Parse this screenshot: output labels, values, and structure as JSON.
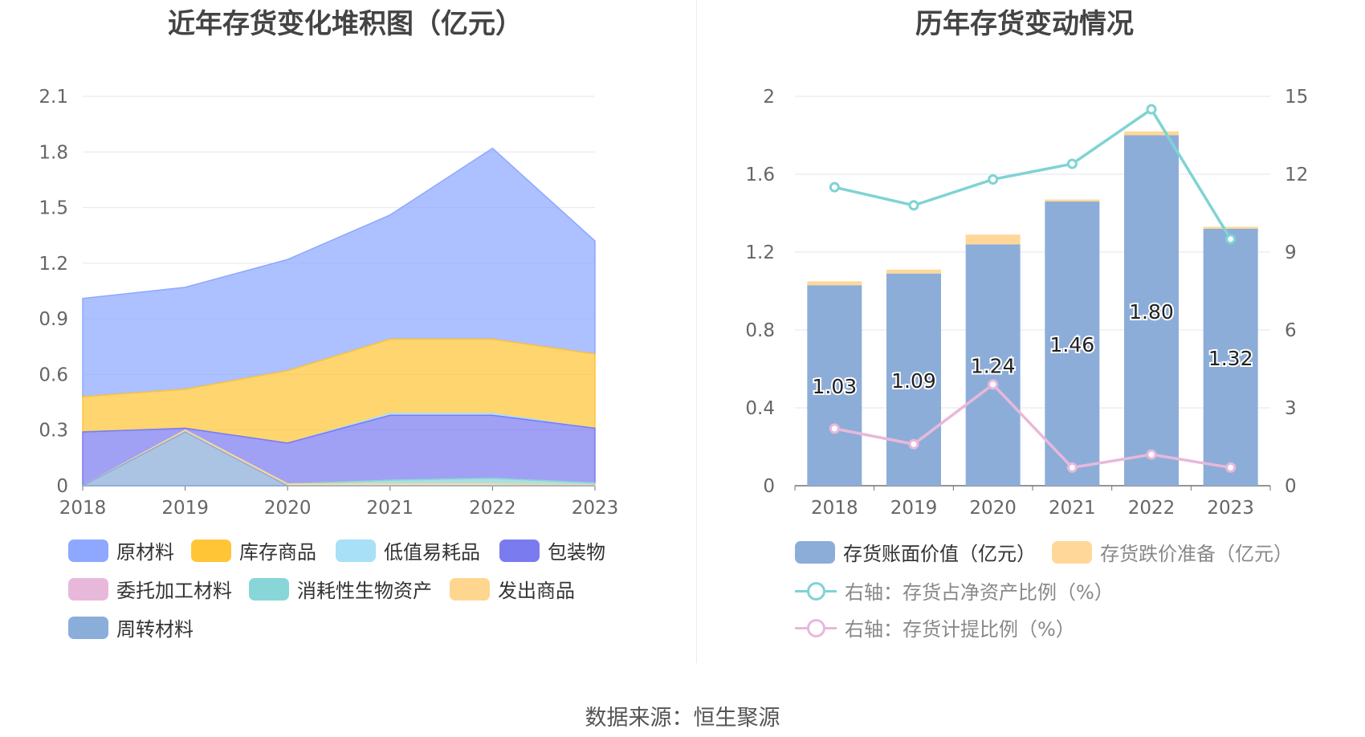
{
  "left_title": "近年存货变化堆积图（亿元）",
  "right_title": "历年存货变动情况",
  "source": "数据来源：恒生聚源",
  "chart_data": [
    {
      "type": "area",
      "title": "近年存货变化堆积图（亿元）",
      "stacked": true,
      "x": [
        "2018",
        "2019",
        "2020",
        "2021",
        "2022",
        "2023"
      ],
      "ylim": [
        0,
        2.1
      ],
      "yticks": [
        "0",
        "0.3",
        "0.6",
        "0.9",
        "1.2",
        "1.5",
        "1.8",
        "2.1"
      ],
      "grid": true,
      "series": [
        {
          "name": "周转材料",
          "color": "#8badd9",
          "values": [
            0,
            0.29,
            0.0,
            0.0,
            0.0,
            0.0
          ]
        },
        {
          "name": "发出商品",
          "color": "#ffd68f",
          "values": [
            0,
            0.01,
            0.01,
            0.01,
            0.01,
            0.005
          ]
        },
        {
          "name": "消耗性生物资产",
          "color": "#88d6d8",
          "values": [
            0,
            0,
            0.0,
            0.02,
            0.03,
            0.01
          ]
        },
        {
          "name": "委托加工材料",
          "color": "#e8b8da",
          "values": [
            0,
            0,
            0,
            0,
            0,
            0
          ]
        },
        {
          "name": "包装物",
          "color": "#7b7bf0",
          "values": [
            0.29,
            0.01,
            0.22,
            0.35,
            0.34,
            0.295
          ]
        },
        {
          "name": "低值易耗品",
          "color": "#a8e0f8",
          "values": [
            0.0,
            0.0,
            0.0,
            0.01,
            0.01,
            0.0
          ]
        },
        {
          "name": "库存商品",
          "color": "#ffc537",
          "values": [
            0.19,
            0.21,
            0.39,
            0.4,
            0.4,
            0.4
          ]
        },
        {
          "name": "原材料",
          "color": "#8ea8ff",
          "values": [
            0.53,
            0.55,
            0.6,
            0.67,
            1.03,
            0.61
          ]
        }
      ],
      "legend": [
        "原材料",
        "库存商品",
        "低值易耗品",
        "包装物",
        "委托加工材料",
        "消耗性生物资产",
        "发出商品",
        "周转材料"
      ],
      "legend_placement": "bottom"
    },
    {
      "type": "bar",
      "title": "历年存货变动情况",
      "categories": [
        "2018",
        "2019",
        "2020",
        "2021",
        "2022",
        "2023"
      ],
      "ylim_left": [
        0,
        2
      ],
      "yticks_left": [
        "0",
        "0.4",
        "0.8",
        "1.2",
        "1.6",
        "2"
      ],
      "ylim_right": [
        0,
        15
      ],
      "yticks_right": [
        "0",
        "3",
        "6",
        "9",
        "12",
        "15"
      ],
      "bar_labels": [
        "1.03",
        "1.09",
        "1.24",
        "1.46",
        "1.80",
        "1.32"
      ],
      "series": [
        {
          "name": "存货账面价值（亿元）",
          "type": "bar",
          "color": "#8dadd9",
          "values": [
            1.03,
            1.09,
            1.24,
            1.46,
            1.8,
            1.32
          ]
        },
        {
          "name": "存货跌价准备（亿元）",
          "type": "bar",
          "color": "#ffd899",
          "values": [
            0.02,
            0.02,
            0.05,
            0.01,
            0.02,
            0.01
          ]
        },
        {
          "name": "右轴：存货占净资产比例（%）",
          "type": "line",
          "axis": "right",
          "color": "#7fd3d3",
          "values": [
            11.5,
            10.8,
            11.8,
            12.4,
            14.5,
            9.5
          ]
        },
        {
          "name": "右轴：存货计提比例（%）",
          "type": "line",
          "axis": "right",
          "color": "#e8b8da",
          "values": [
            2.2,
            1.6,
            3.9,
            0.7,
            1.2,
            0.7
          ]
        }
      ],
      "legend_placement": "bottom"
    }
  ]
}
